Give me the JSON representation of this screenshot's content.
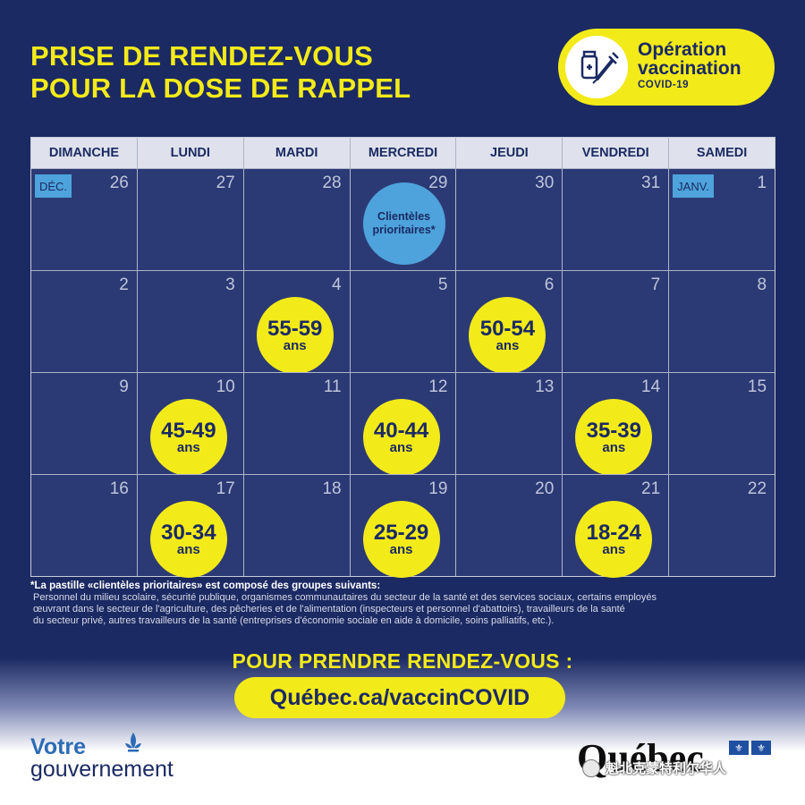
{
  "header": {
    "title_line1": "PRISE DE RENDEZ-VOUS",
    "title_line2": "POUR LA DOSE DE RAPPEL"
  },
  "operation_badge": {
    "line1": "Opération",
    "line2": "vaccination",
    "line3": "COVID-19",
    "icon": "vaccine-vial-syringe-icon"
  },
  "calendar": {
    "weekdays": [
      "DIMANCHE",
      "LUNDI",
      "MARDI",
      "MERCREDI",
      "JEUDI",
      "VENDREDI",
      "SAMEDI"
    ],
    "weeks": [
      [
        {
          "day": "26",
          "month_tag": "DÉC."
        },
        {
          "day": "27"
        },
        {
          "day": "28"
        },
        {
          "day": "29",
          "priority": "Clientèles prioritaires*"
        },
        {
          "day": "30"
        },
        {
          "day": "31"
        },
        {
          "day": "1",
          "month_tag": "JANV."
        }
      ],
      [
        {
          "day": "2"
        },
        {
          "day": "3"
        },
        {
          "day": "4",
          "age": "55-59",
          "unit": "ans"
        },
        {
          "day": "5"
        },
        {
          "day": "6",
          "age": "50-54",
          "unit": "ans"
        },
        {
          "day": "7"
        },
        {
          "day": "8"
        }
      ],
      [
        {
          "day": "9"
        },
        {
          "day": "10",
          "age": "45-49",
          "unit": "ans"
        },
        {
          "day": "11"
        },
        {
          "day": "12",
          "age": "40-44",
          "unit": "ans"
        },
        {
          "day": "13"
        },
        {
          "day": "14",
          "age": "35-39",
          "unit": "ans"
        },
        {
          "day": "15"
        }
      ],
      [
        {
          "day": "16"
        },
        {
          "day": "17",
          "age": "30-34",
          "unit": "ans"
        },
        {
          "day": "18"
        },
        {
          "day": "19",
          "age": "25-29",
          "unit": "ans"
        },
        {
          "day": "20"
        },
        {
          "day": "21",
          "age": "18-24",
          "unit": "ans"
        },
        {
          "day": "22"
        }
      ]
    ]
  },
  "footnote": {
    "title": "*La pastille «clientèles prioritaires» est composé des groupes suivants:",
    "line1": "Personnel du milieu scolaire, sécurité publique, organismes communautaires du secteur de la santé et des services sociaux, certains employés",
    "line2": "œuvrant dans le secteur de l'agriculture, des pêcheries et de l'alimentation (inspecteurs et personnel d'abattoirs), travailleurs de la santé",
    "line3": "du secteur privé, autres travailleurs de la santé (entreprises d'économie sociale en aide à domicile, soins palliatifs, etc.)."
  },
  "cta": {
    "text": "POUR PRENDRE RENDEZ-VOUS :",
    "url": "Québec.ca/vaccinCOVID"
  },
  "footer": {
    "gov_line1": "Votre",
    "gov_line2": "gouvernement",
    "quebec_logo": "Québec",
    "watermark": "魁北克蒙特利尔华人"
  },
  "colors": {
    "navy": "#1b2a63",
    "cell": "#2b3a75",
    "yellow": "#f3ea1a",
    "light_blue": "#4ea3dc"
  }
}
